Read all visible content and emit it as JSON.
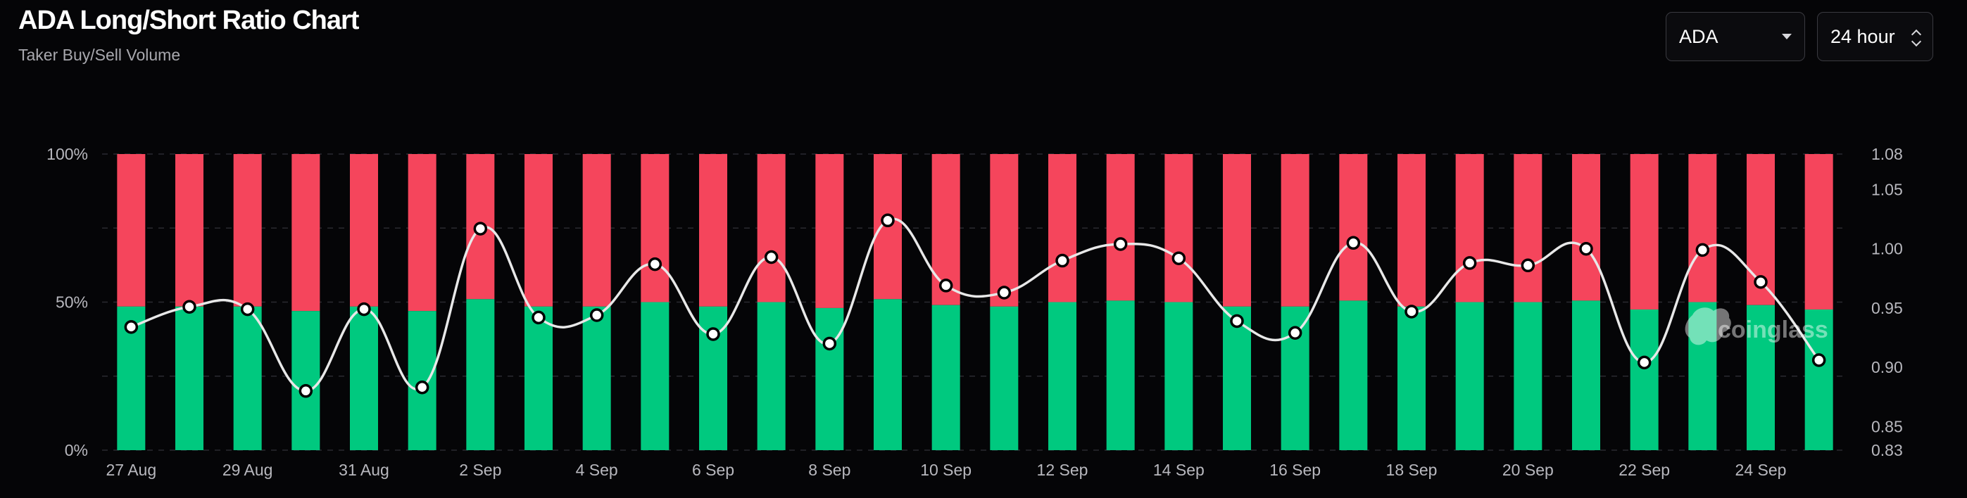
{
  "header": {
    "title": "ADA Long/Short Ratio Chart",
    "subtitle": "Taker Buy/Sell Volume"
  },
  "controls": {
    "coin": "ADA",
    "interval": "24 hour"
  },
  "watermark": "coinglass",
  "colors": {
    "long": "#00c97f",
    "short": "#f5455c",
    "ratio_line": "#e8e8e8",
    "background": "#050507"
  },
  "chart_data": {
    "type": "bar",
    "stacked_percent": true,
    "categories": [
      "27 Aug",
      "28 Aug",
      "29 Aug",
      "30 Aug",
      "31 Aug",
      "1 Sep",
      "2 Sep",
      "3 Sep",
      "4 Sep",
      "5 Sep",
      "6 Sep",
      "7 Sep",
      "8 Sep",
      "9 Sep",
      "10 Sep",
      "11 Sep",
      "12 Sep",
      "13 Sep",
      "14 Sep",
      "15 Sep",
      "16 Sep",
      "17 Sep",
      "18 Sep",
      "19 Sep",
      "20 Sep",
      "21 Sep",
      "22 Sep",
      "23 Sep",
      "24 Sep",
      "25 Sep"
    ],
    "x_tick_labels": [
      "27 Aug",
      "29 Aug",
      "31 Aug",
      "2 Sep",
      "4 Sep",
      "6 Sep",
      "8 Sep",
      "10 Sep",
      "12 Sep",
      "14 Sep",
      "16 Sep",
      "18 Sep",
      "20 Sep",
      "22 Sep",
      "24 Sep"
    ],
    "series": [
      {
        "name": "",
        "axis": "left",
        "color": "#00c97f",
        "values": [
          48.5,
          48.5,
          48.5,
          47,
          48.5,
          47,
          51,
          48.5,
          48.5,
          50,
          48.5,
          50,
          48,
          51,
          49,
          48.5,
          50,
          50.5,
          50,
          48.5,
          48.5,
          50.5,
          48.5,
          50,
          50,
          50.5,
          47.5,
          50,
          49,
          47.5
        ]
      },
      {
        "name": "",
        "axis": "left",
        "color": "#f5455c",
        "values": [
          51.5,
          51.5,
          51.5,
          53,
          51.5,
          53,
          49,
          51.5,
          51.5,
          50,
          51.5,
          50,
          52,
          49,
          51,
          51.5,
          50,
          49.5,
          50,
          51.5,
          51.5,
          49.5,
          51.5,
          50,
          50,
          49.5,
          52.5,
          50,
          51,
          52.5
        ]
      },
      {
        "name": "",
        "axis": "right",
        "type": "line",
        "color": "#e8e8e8",
        "values": [
          0.934,
          0.951,
          0.949,
          0.88,
          0.949,
          0.883,
          1.017,
          0.942,
          0.944,
          0.987,
          0.928,
          0.993,
          0.92,
          1.024,
          0.969,
          0.963,
          0.99,
          1.004,
          0.992,
          0.939,
          0.929,
          1.005,
          0.947,
          0.988,
          0.986,
          1.0,
          0.904,
          0.999,
          0.972,
          0.906
        ]
      }
    ],
    "y_left": {
      "ticks": [
        "0%",
        "50%",
        "100%"
      ],
      "range": [
        0,
        100
      ]
    },
    "y_right": {
      "ticks": [
        "0.83",
        "0.85",
        "0.90",
        "0.95",
        "1.00",
        "1.05",
        "1.08"
      ],
      "range": [
        0.83,
        1.08
      ]
    },
    "grid": true
  }
}
